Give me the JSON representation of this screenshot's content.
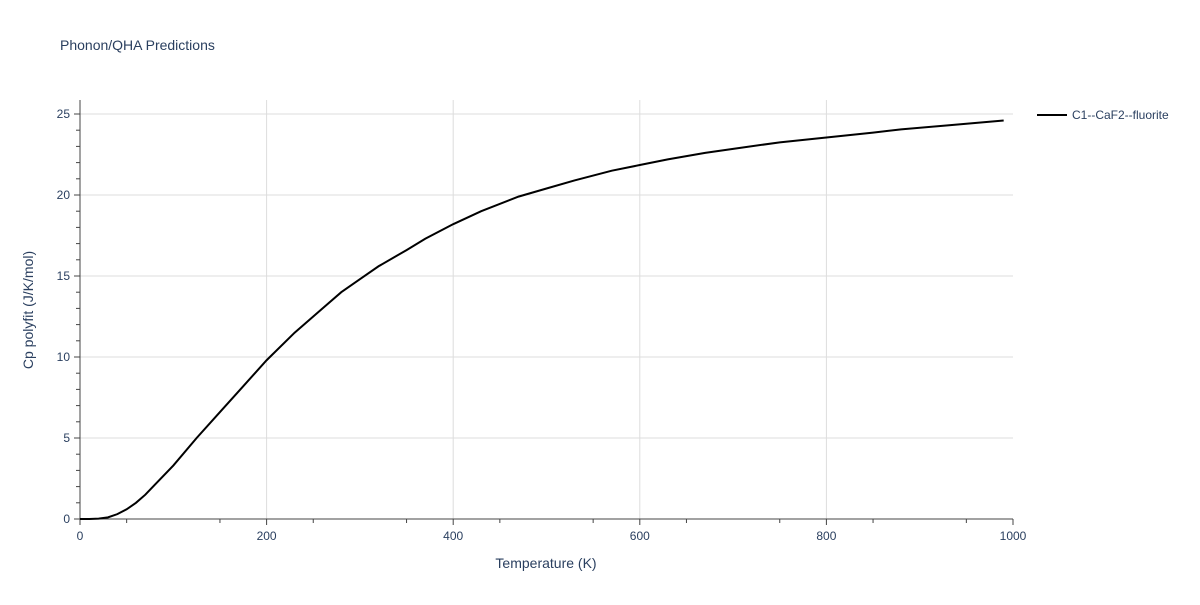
{
  "chart_data": {
    "type": "line",
    "title": "Phonon/QHA Predictions",
    "xlabel": "Temperature (K)",
    "ylabel": "Cp polyfit (J/K/mol)",
    "xlim": [
      0,
      1000
    ],
    "ylim": [
      0,
      26
    ],
    "xticks": [
      0,
      200,
      400,
      600,
      800,
      1000
    ],
    "yticks": [
      0,
      5,
      10,
      15,
      20,
      25
    ],
    "grid": true,
    "legend_position": "top-right",
    "series": [
      {
        "name": "C1--CaF2--fluorite",
        "color": "#000000",
        "x": [
          0,
          10,
          20,
          30,
          40,
          50,
          60,
          70,
          80,
          100,
          125,
          150,
          175,
          200,
          230,
          260,
          280,
          300,
          320,
          350,
          370,
          400,
          430,
          470,
          500,
          530,
          570,
          600,
          630,
          670,
          700,
          750,
          800,
          850,
          880,
          930,
          990
        ],
        "y": [
          0,
          0,
          0.02,
          0.1,
          0.3,
          0.6,
          1.0,
          1.5,
          2.1,
          3.3,
          5.0,
          6.6,
          8.2,
          9.8,
          11.5,
          13.0,
          14.0,
          14.8,
          15.6,
          16.6,
          17.3,
          18.2,
          19.0,
          19.9,
          20.4,
          20.9,
          21.5,
          21.85,
          22.2,
          22.6,
          22.85,
          23.25,
          23.55,
          23.85,
          24.05,
          24.3,
          24.6
        ]
      }
    ]
  }
}
